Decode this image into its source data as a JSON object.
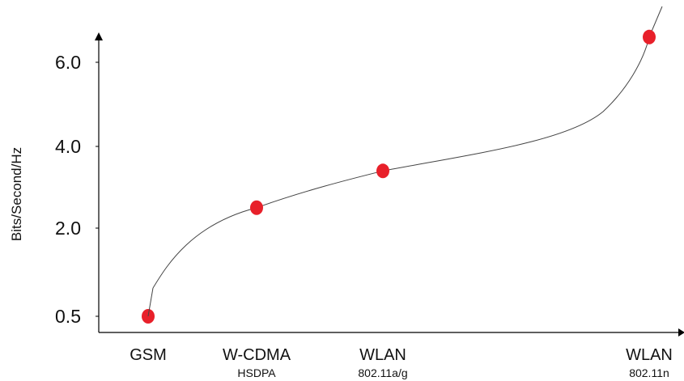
{
  "chart_data": {
    "type": "line",
    "title": "",
    "ylabel": "Bits/Second/Hz",
    "xlabel": "",
    "yticks": [
      "6.0",
      "4.0",
      "2.0",
      "0.5"
    ],
    "categories": [
      {
        "label": "GSM",
        "sublabel": ""
      },
      {
        "label": "W-CDMA",
        "sublabel": "HSDPA"
      },
      {
        "label": "WLAN",
        "sublabel": "802.11a/g"
      },
      {
        "label": "WLAN",
        "sublabel": "802.11n"
      }
    ],
    "series": [
      {
        "values": [
          0.5,
          2.5,
          3.4,
          6.6
        ]
      }
    ],
    "grid": false,
    "colors": {
      "marker": "#e8202a",
      "curve": "#444444",
      "axis": "#000000"
    }
  }
}
